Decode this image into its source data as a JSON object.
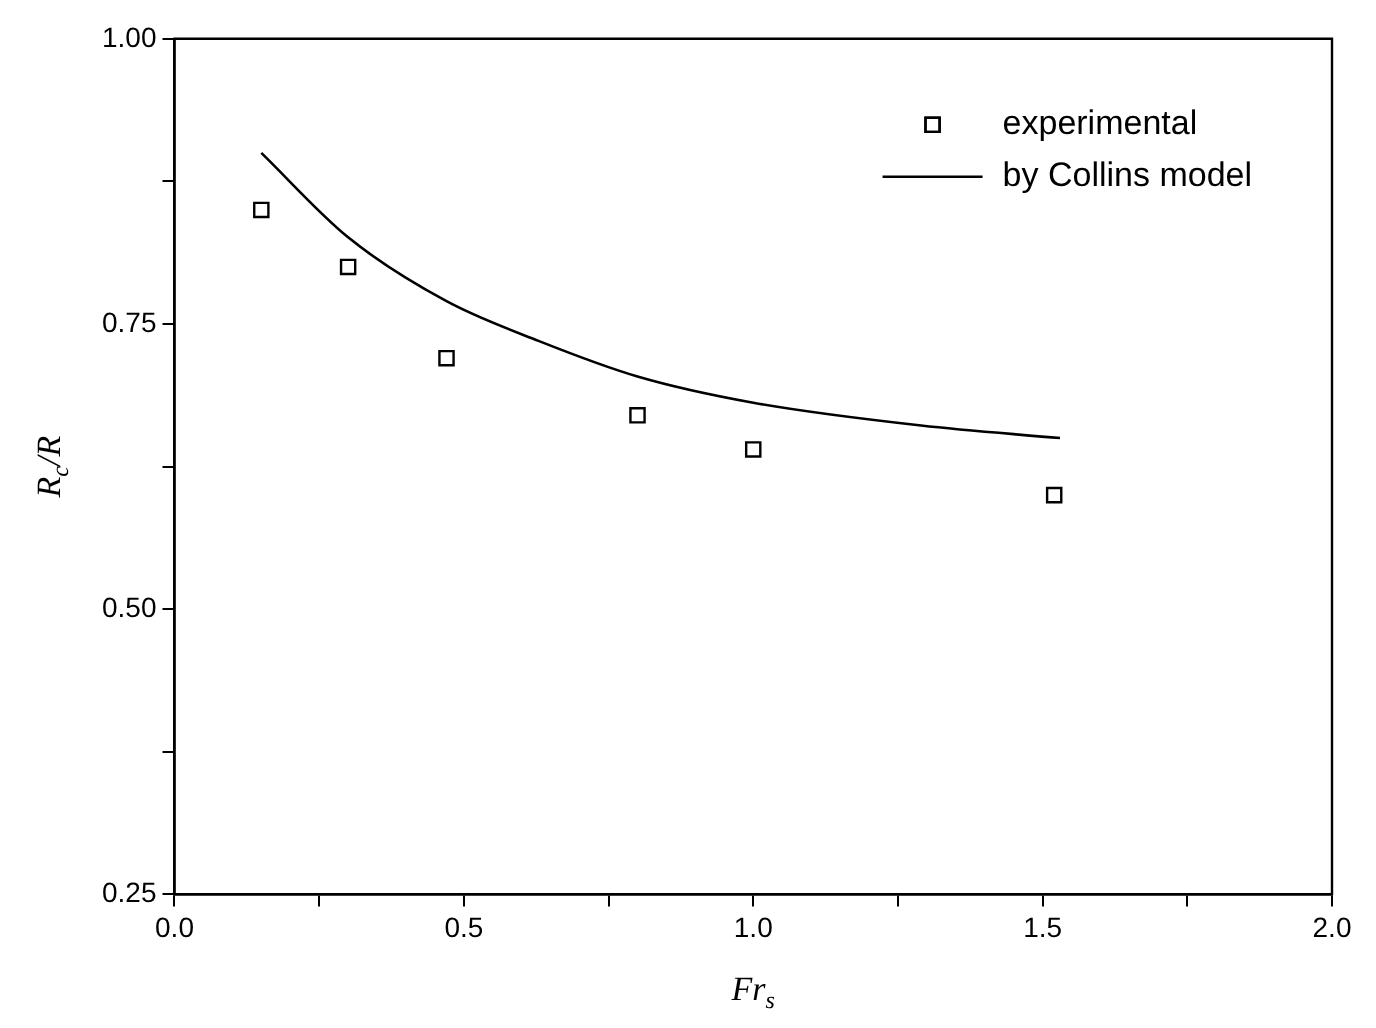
{
  "chart_data": {
    "type": "scatter",
    "xlabel": "Fr$_{s}$",
    "ylabel": "R$_{c}$/R",
    "xlim": [
      0,
      2
    ],
    "xticks": [
      {
        "value": 0,
        "label": "0.0"
      },
      {
        "value": 0.25,
        "label": null
      },
      {
        "value": 0.5,
        "label": "0.5"
      },
      {
        "value": 0.75,
        "label": null
      },
      {
        "value": 1,
        "label": "1.0"
      },
      {
        "value": 1.25,
        "label": null
      },
      {
        "value": 1.5,
        "label": "1.5"
      },
      {
        "value": 1.75,
        "label": null
      },
      {
        "value": 2,
        "label": "2.0"
      }
    ],
    "ylim": [
      0.25,
      1
    ],
    "yticks": [
      {
        "value": 0.25,
        "label": "0.25"
      },
      {
        "value": 0.375,
        "label": null
      },
      {
        "value": 0.5,
        "label": "0.50"
      },
      {
        "value": 0.625,
        "label": null
      },
      {
        "value": 0.75,
        "label": "0.75"
      },
      {
        "value": 0.875,
        "label": null
      },
      {
        "value": 1,
        "label": "1.00"
      }
    ],
    "grid": false,
    "legend": "top right",
    "series": [
      {
        "name": "experimental",
        "type": "scatter",
        "marker": "square",
        "color": "#000000",
        "x": [
          0.15,
          0.3,
          0.47,
          0.8,
          1.0,
          1.52
        ],
        "values": [
          0.85,
          0.8,
          0.72,
          0.67,
          0.64,
          0.6
        ]
      },
      {
        "name": "by Collins model",
        "type": "line",
        "marker": "none",
        "line_style": "solid",
        "color": "#000000",
        "x": [
          0.15,
          0.3,
          0.47,
          0.63,
          0.8,
          1.0,
          1.29,
          1.53
        ],
        "values": [
          0.9,
          0.826,
          0.77,
          0.735,
          0.704,
          0.681,
          0.661,
          0.65
        ]
      }
    ]
  }
}
